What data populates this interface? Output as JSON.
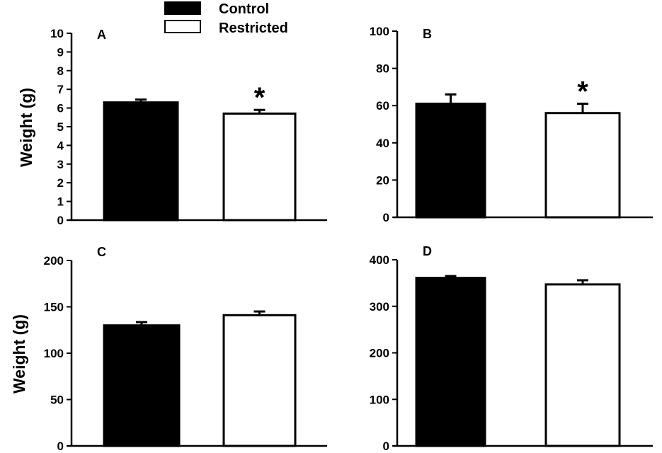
{
  "legend": {
    "items": [
      {
        "label": "Control",
        "fill": "#000000"
      },
      {
        "label": "Restricted",
        "fill": "#ffffff"
      }
    ]
  },
  "colors": {
    "control": "#000000",
    "restricted": "#ffffff",
    "axis": "#000000"
  },
  "chart_data": [
    {
      "type": "bar",
      "panel": "A",
      "categories": [
        "Control",
        "Restricted"
      ],
      "values": [
        6.3,
        5.7
      ],
      "errors": [
        0.15,
        0.2
      ],
      "significance": [
        "",
        "*"
      ],
      "ylim": [
        0,
        10
      ],
      "yticks": [
        0,
        1,
        2,
        3,
        4,
        5,
        6,
        7,
        8,
        9,
        10
      ],
      "ylabel": "Weight (g)",
      "xlabel": ""
    },
    {
      "type": "bar",
      "panel": "B",
      "categories": [
        "Control",
        "Restricted"
      ],
      "values": [
        61,
        56
      ],
      "errors": [
        5,
        5
      ],
      "significance": [
        "",
        "*"
      ],
      "ylim": [
        0,
        100
      ],
      "yticks": [
        0,
        20,
        40,
        60,
        80,
        100
      ],
      "ylabel": "",
      "xlabel": ""
    },
    {
      "type": "bar",
      "panel": "C",
      "categories": [
        "Control",
        "Restricted"
      ],
      "values": [
        130,
        141
      ],
      "errors": [
        3.5,
        4
      ],
      "significance": [
        "",
        ""
      ],
      "ylim": [
        0,
        200
      ],
      "yticks": [
        0,
        50,
        100,
        150,
        200
      ],
      "ylabel": "Weight (g)",
      "xlabel": ""
    },
    {
      "type": "bar",
      "panel": "D",
      "categories": [
        "Control",
        "Restricted"
      ],
      "values": [
        361,
        347
      ],
      "errors": [
        4,
        9
      ],
      "significance": [
        "",
        ""
      ],
      "ylim": [
        0,
        400
      ],
      "yticks": [
        0,
        100,
        200,
        300,
        400
      ],
      "ylabel": "",
      "xlabel": ""
    }
  ]
}
